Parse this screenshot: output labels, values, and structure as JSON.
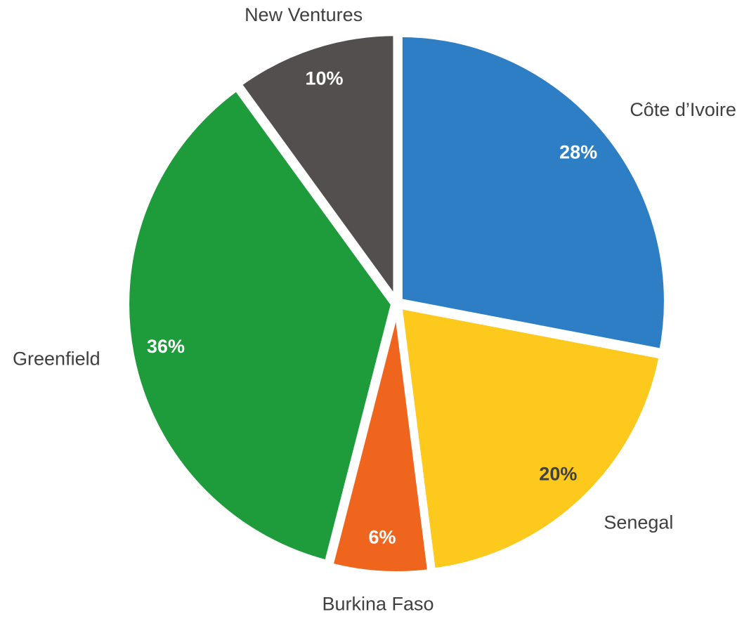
{
  "chart_data": {
    "type": "pie",
    "categories": [
      "Côte d’Ivoire",
      "Senegal",
      "Burkina Faso",
      "Greenfield",
      "New Ventures"
    ],
    "values": [
      28,
      20,
      6,
      36,
      10
    ],
    "value_labels": [
      "28%",
      "20%",
      "6%",
      "36%",
      "10%"
    ],
    "colors": [
      "#2e7ec6",
      "#fcc91c",
      "#f0651e",
      "#1e9b3a",
      "#524f4e"
    ],
    "label_colors": [
      "#ffffff",
      "#404040",
      "#ffffff",
      "#ffffff",
      "#ffffff"
    ]
  }
}
